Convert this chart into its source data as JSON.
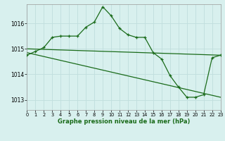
{
  "xlabel": "Graphe pression niveau de la mer (hPa)",
  "bg_color": "#d8f0ee",
  "grid_color": "#c0dedd",
  "line_color": "#1a6b1a",
  "ylim": [
    1012.6,
    1016.75
  ],
  "xlim": [
    0,
    23
  ],
  "yticks": [
    1013,
    1014,
    1015,
    1016
  ],
  "xticks": [
    0,
    1,
    2,
    3,
    4,
    5,
    6,
    7,
    8,
    9,
    10,
    11,
    12,
    13,
    14,
    15,
    16,
    17,
    18,
    19,
    20,
    21,
    22,
    23
  ],
  "line1_x": [
    0,
    1,
    2,
    3,
    4,
    5,
    6,
    7,
    8,
    9,
    10,
    11,
    12,
    13,
    14,
    15,
    16,
    17,
    18,
    19,
    20,
    21,
    22,
    23
  ],
  "line1_y": [
    1014.75,
    1014.9,
    1015.05,
    1015.45,
    1015.5,
    1015.5,
    1015.5,
    1015.85,
    1016.05,
    1016.65,
    1016.3,
    1015.8,
    1015.55,
    1015.45,
    1015.45,
    1014.85,
    1014.6,
    1013.95,
    1013.5,
    1013.1,
    1013.1,
    1013.2,
    1014.65,
    1014.75
  ],
  "line2_x": [
    0,
    23
  ],
  "line2_y": [
    1015.0,
    1014.75
  ],
  "line3_x": [
    0,
    23
  ],
  "line3_y": [
    1014.85,
    1013.1
  ]
}
